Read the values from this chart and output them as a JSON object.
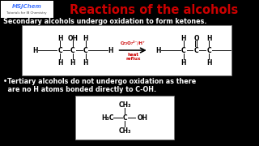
{
  "bg_color": "#000000",
  "logo_text1": "MSJChem",
  "logo_text2": "Tutorials for IB Chemistry",
  "logo_color": "#4477ff",
  "logo_bg": "#ffffff",
  "header_text": "Reactions of the alcohols",
  "header_color": "#cc0000",
  "secondary_text": "Secondary alcohols undergo oxidation to form ketones.",
  "tertiary_text1": "•Tertiary alcohols do not undergo oxidation as there",
  "tertiary_text2": "  are no H atoms bonded directly to C-OH.",
  "reagent_text": "Cr₂O₇²⁻/H⁺",
  "reagent_color": "#cc0000",
  "condition_text": "heat\nreflux",
  "condition_color": "#cc0000",
  "text_color": "#ffffff",
  "box_color": "#ffffff",
  "sc": "#000000",
  "arrow_color": "#000000"
}
